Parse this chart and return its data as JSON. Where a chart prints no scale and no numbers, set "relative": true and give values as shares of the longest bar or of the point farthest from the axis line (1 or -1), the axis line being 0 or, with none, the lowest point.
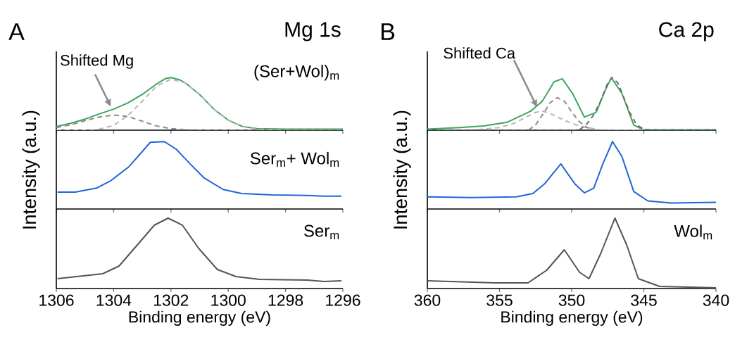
{
  "chart_data": [
    {
      "type": "line",
      "title": "Mg 1s",
      "annotations": [
        "A",
        {
          "text": "Shifted Mg",
          "x": 1304.1,
          "y": 0.45
        }
      ],
      "relative": true,
      "xlim": [
        1306,
        1296
      ],
      "xticks": [
        1306,
        1304,
        1302,
        1300,
        1298,
        1296
      ],
      "tick_labels": false,
      "series": [
        {
          "name": "(Ser+Wol)$_{m}$",
          "color": "#3fa45b",
          "x": [
            1306,
            1305.5,
            1305,
            1304.5,
            1304,
            1303.5,
            1303,
            1302.5,
            1302.2,
            1302,
            1301.7,
            1301.5,
            1301,
            1300.5,
            1300,
            1299.5,
            1299,
            1298,
            1297,
            1296
          ],
          "values": [
            0.07,
            0.13,
            0.21,
            0.31,
            0.4,
            0.52,
            0.68,
            0.88,
            0.98,
            1.0,
            0.96,
            0.9,
            0.68,
            0.4,
            0.19,
            0.07,
            0.03,
            0.02,
            0.02,
            0.02
          ]
        },
        {
          "color": "#b8b8b8",
          "line_style": "dashed",
          "x": [
            1306,
            1305,
            1304.5,
            1304,
            1303.5,
            1303,
            1302.5,
            1302,
            1301.5,
            1301,
            1300.5,
            1300,
            1299.5,
            1299,
            1298,
            1296
          ],
          "values": [
            0,
            0,
            0.02,
            0.09,
            0.28,
            0.55,
            0.84,
            0.97,
            0.9,
            0.68,
            0.4,
            0.19,
            0.07,
            0.02,
            0,
            0
          ]
        },
        {
          "color": "#8c8c8c",
          "line_style": "dashed",
          "x": [
            1306,
            1305.5,
            1305,
            1304.5,
            1304,
            1303.5,
            1303,
            1302.5,
            1302,
            1301.5,
            1301,
            1296
          ],
          "values": [
            0.05,
            0.1,
            0.18,
            0.25,
            0.29,
            0.26,
            0.17,
            0.08,
            0.03,
            0.01,
            0,
            0
          ]
        }
      ]
    },
    {
      "type": "line",
      "ylabel": "Intensity (a.u.)",
      "relative": true,
      "xlim": [
        1306,
        1296
      ],
      "xticks": [
        1306,
        1304,
        1302,
        1300,
        1298,
        1296
      ],
      "tick_labels": false,
      "series": [
        {
          "name": "Ser$_{m}$+ Wol$_{m}$",
          "color": "#1f66d6",
          "x": [
            1305.96,
            1305.34,
            1304.6,
            1304.1,
            1303.46,
            1302.72,
            1302.23,
            1301.82,
            1301.33,
            1300.84,
            1300.18,
            1299.53,
            1298.46,
            1297.24,
            1296.66,
            1296.05
          ],
          "values": [
            0.25,
            0.25,
            0.31,
            0.42,
            0.63,
            0.99,
            1.0,
            0.89,
            0.67,
            0.46,
            0.29,
            0.23,
            0.21,
            0.2,
            0.19,
            0.19
          ]
        }
      ]
    },
    {
      "type": "line",
      "xlabel": "Binding energy (eV)",
      "relative": true,
      "xlim": [
        1306,
        1296
      ],
      "xticks": [
        1306,
        1304,
        1302,
        1300,
        1298,
        1296
      ],
      "tick_labels": "x",
      "series": [
        {
          "name": "Ser$_{m}$",
          "color": "#555555",
          "x": [
            1305.96,
            1304.38,
            1303.81,
            1303.15,
            1302.58,
            1302.1,
            1301.6,
            1301.03,
            1300.38,
            1299.73,
            1298.91,
            1297.24,
            1296.66,
            1296.05
          ],
          "values": [
            0.14,
            0.21,
            0.32,
            0.63,
            0.9,
            1.0,
            0.9,
            0.57,
            0.27,
            0.17,
            0.13,
            0.12,
            0.1,
            0.11
          ]
        }
      ]
    },
    {
      "type": "line",
      "title": "Ca 2p",
      "annotations": [
        "B",
        {
          "text": "Shifted Ca",
          "x": 352.4,
          "y": 0.44
        }
      ],
      "relative": true,
      "xlim": [
        360,
        340
      ],
      "xticks": [
        360,
        355,
        350,
        345,
        340
      ],
      "tick_labels": false,
      "series": [
        {
          "color": "#3fa45b",
          "x": [
            360,
            357.75,
            356.1,
            354.48,
            352.85,
            352.04,
            351.22,
            350.65,
            349.94,
            349.12,
            348.3,
            347.66,
            347.25,
            346.52,
            345.7,
            345.05,
            340
          ],
          "values": [
            0.02,
            0.05,
            0.08,
            0.15,
            0.36,
            0.55,
            0.92,
            0.98,
            0.7,
            0.25,
            0.34,
            0.77,
            1.0,
            0.7,
            0.1,
            0.01,
            0.01
          ]
        },
        {
          "color": "#b8b8b8",
          "line_style": "dashed",
          "x": [
            360,
            357,
            355,
            354,
            353,
            352.5,
            352,
            351.5,
            351,
            350,
            349,
            348,
            347,
            340
          ],
          "values": [
            0,
            0,
            0.05,
            0.13,
            0.27,
            0.34,
            0.36,
            0.32,
            0.25,
            0.13,
            0.05,
            0.01,
            0,
            0
          ]
        },
        {
          "color": "#8c8c8c",
          "line_style": "dashed",
          "x": [
            360,
            353,
            352.5,
            352,
            351.5,
            351,
            350.5,
            350,
            349.5,
            349,
            348.5,
            348,
            340
          ],
          "values": [
            0,
            0,
            0.1,
            0.3,
            0.52,
            0.62,
            0.55,
            0.35,
            0.17,
            0.06,
            0.01,
            0,
            0
          ]
        },
        {
          "color": "#6e6e6e",
          "line_style": "dashed",
          "x": [
            360,
            349.5,
            349,
            348.5,
            348,
            347.5,
            347.2,
            346.8,
            346.5,
            346,
            345.5,
            345,
            344.5,
            340
          ],
          "values": [
            0,
            0,
            0.1,
            0.28,
            0.55,
            0.9,
            1.0,
            0.9,
            0.7,
            0.35,
            0.1,
            0.02,
            0,
            0
          ]
        }
      ]
    },
    {
      "type": "line",
      "ylabel": "Intensity (a.u.)",
      "relative": true,
      "xlim": [
        360,
        340
      ],
      "xticks": [
        360,
        355,
        350,
        345,
        340
      ],
      "tick_labels": false,
      "series": [
        {
          "color": "#1f66d6",
          "x": [
            360,
            356.92,
            353.83,
            352.69,
            351.89,
            350.75,
            349.77,
            349.12,
            348.47,
            347.82,
            347.17,
            346.52,
            345.7,
            344.72,
            343.1,
            340
          ],
          "values": [
            0.18,
            0.17,
            0.18,
            0.23,
            0.37,
            0.67,
            0.37,
            0.24,
            0.31,
            0.68,
            1.0,
            0.78,
            0.26,
            0.12,
            0.09,
            0.1
          ]
        }
      ]
    },
    {
      "type": "line",
      "xlabel": "Binding energy (eV)",
      "relative": true,
      "xlim": [
        360,
        340
      ],
      "xticks": [
        360,
        355,
        350,
        345,
        340
      ],
      "tick_labels": "x",
      "series": [
        {
          "name": "Wol$_{m}$",
          "color": "#555555",
          "x": [
            360,
            355.31,
            353.03,
            351.73,
            350.51,
            349.45,
            348.8,
            347.98,
            347.0,
            346.19,
            345.38,
            343.91,
            340
          ],
          "values": [
            0.11,
            0.08,
            0.08,
            0.26,
            0.55,
            0.23,
            0.14,
            0.5,
            1.0,
            0.62,
            0.14,
            0.03,
            0.01
          ]
        }
      ]
    }
  ]
}
